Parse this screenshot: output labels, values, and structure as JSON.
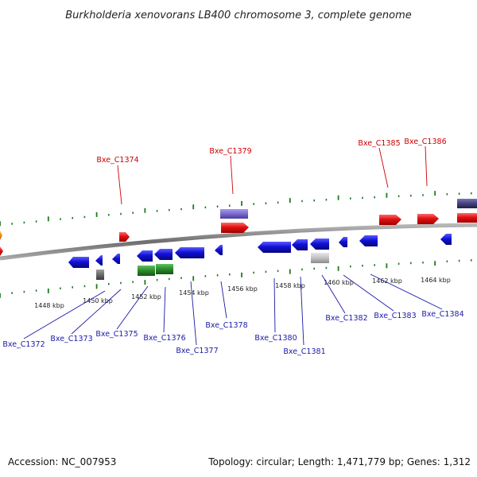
{
  "title": "Burkholderia xenovorans LB400 chromosome 3, complete genome",
  "footer": {
    "accession": "Accession: NC_007953",
    "topology": "Topology: circular; Length: 1,471,779 bp; Genes: 1,312"
  },
  "colors": {
    "forward_label": "#cc0000",
    "reverse_label": "#1a1aa8",
    "forward_gene": "#e01010",
    "reverse_gene": "#1212d8",
    "rna_gene": "#2a8a2a",
    "pseudo_gene": "#c0c0c0",
    "other_gene": "#7a6ad0",
    "tick": "#1f7a1f",
    "backbone": "#7a7a7a"
  },
  "kbp_labels": [
    "1448 kbp",
    "1450 kbp",
    "1452 kbp",
    "1454 kbp",
    "1456 kbp",
    "1458 kbp",
    "1460 kbp",
    "1462 kbp",
    "1464 kbp"
  ],
  "forward_labels": [
    "Bxe_C1374",
    "Bxe_C1379",
    "Bxe_C1385",
    "Bxe_C1386"
  ],
  "reverse_labels": [
    "Bxe_C1372",
    "Bxe_C1373",
    "Bxe_C1375",
    "Bxe_C1376",
    "Bxe_C1377",
    "Bxe_C1378",
    "Bxe_C1380",
    "Bxe_C1381",
    "Bxe_C1382",
    "Bxe_C1383",
    "Bxe_C1384"
  ]
}
